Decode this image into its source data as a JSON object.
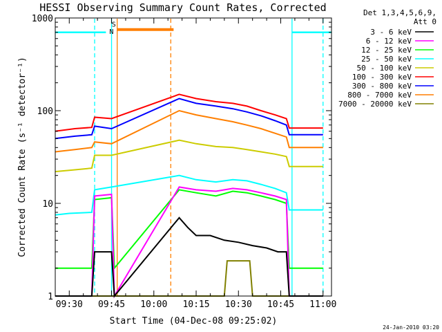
{
  "chart_data": {
    "type": "line",
    "title": "HESSI Observing Summary Count Rates, Corrected",
    "xlabel": "Start Time (04-Dec-08 09:25:02)",
    "ylabel": "Corrected Count Rate (s⁻¹ detector⁻¹)",
    "yscale": "log",
    "ylim": [
      1,
      1000
    ],
    "xlim": [
      "09:25:02",
      "11:03:00"
    ],
    "x_ticks": [
      "09:30",
      "09:45",
      "10:00",
      "10:15",
      "10:30",
      "10:45",
      "11:00"
    ],
    "y_ticks": [
      "1",
      "10",
      "100",
      "1000"
    ],
    "grid": false,
    "legend_position": "right",
    "legend_header": [
      "Det 1,3,4,5,6,9,",
      "Att 0"
    ],
    "footer_date": "24-Jan-2010 03:20",
    "flags": [
      {
        "label": "N",
        "color": "#00ffff",
        "level": 700,
        "segments": [
          [
            "09:25",
            "09:43"
          ],
          [
            "10:49",
            "11:03"
          ]
        ]
      },
      {
        "label": "S",
        "color": "#ff7f00",
        "level": 750,
        "segments": [
          [
            "09:47",
            "10:07"
          ]
        ]
      }
    ],
    "markers": [
      {
        "time": "09:39",
        "color": "#00ffff",
        "style": "dashed"
      },
      {
        "time": "09:45",
        "color": "#00ffff",
        "style": "solid"
      },
      {
        "time": "09:47",
        "color": "#ff7f00",
        "style": "solid"
      },
      {
        "time": "10:06",
        "color": "#ff7f00",
        "style": "dashed"
      },
      {
        "time": "10:49",
        "color": "#00ffff",
        "style": "solid"
      },
      {
        "time": "11:00",
        "color": "#00ffff",
        "style": "dashed"
      }
    ],
    "series": [
      {
        "name": "3 - 6 keV",
        "color": "#000000",
        "points": [
          [
            "09:25",
            1.0
          ],
          [
            "09:38",
            1.0
          ],
          [
            "09:39",
            3.0
          ],
          [
            "09:45",
            3.0
          ],
          [
            "09:46",
            1.0
          ],
          [
            "10:09",
            7.0
          ],
          [
            "10:12",
            5.5
          ],
          [
            "10:15",
            4.5
          ],
          [
            "10:20",
            4.5
          ],
          [
            "10:25",
            4.0
          ],
          [
            "10:30",
            3.8
          ],
          [
            "10:35",
            3.5
          ],
          [
            "10:40",
            3.3
          ],
          [
            "10:44",
            3.0
          ],
          [
            "10:47",
            3.0
          ],
          [
            "10:48",
            1.0
          ],
          [
            "11:00",
            1.0
          ]
        ]
      },
      {
        "name": "6 - 12 keV",
        "color": "#ff00ff",
        "points": [
          [
            "09:25",
            1.0
          ],
          [
            "09:38",
            1.0
          ],
          [
            "09:39",
            12.0
          ],
          [
            "09:45",
            12.5
          ],
          [
            "09:46",
            1.0
          ],
          [
            "10:09",
            15.0
          ],
          [
            "10:15",
            14.0
          ],
          [
            "10:22",
            13.5
          ],
          [
            "10:28",
            14.5
          ],
          [
            "10:33",
            14.0
          ],
          [
            "10:38",
            13.0
          ],
          [
            "10:43",
            12.0
          ],
          [
            "10:47",
            11.0
          ],
          [
            "10:48",
            1.0
          ],
          [
            "11:00",
            1.0
          ]
        ]
      },
      {
        "name": "12 - 25 keV",
        "color": "#00ff00",
        "points": [
          [
            "09:25",
            2.0
          ],
          [
            "09:38",
            2.0
          ],
          [
            "09:39",
            11.0
          ],
          [
            "09:45",
            11.5
          ],
          [
            "09:46",
            2.0
          ],
          [
            "10:09",
            14.0
          ],
          [
            "10:15",
            13.0
          ],
          [
            "10:22",
            12.0
          ],
          [
            "10:28",
            13.5
          ],
          [
            "10:33",
            13.0
          ],
          [
            "10:38",
            12.0
          ],
          [
            "10:43",
            11.0
          ],
          [
            "10:47",
            10.0
          ],
          [
            "10:48",
            2.0
          ],
          [
            "11:00",
            2.0
          ]
        ]
      },
      {
        "name": "25 - 50 keV",
        "color": "#00ffff",
        "points": [
          [
            "09:25",
            7.5
          ],
          [
            "09:30",
            7.8
          ],
          [
            "09:38",
            8.0
          ],
          [
            "09:39",
            14.0
          ],
          [
            "09:45",
            15.0
          ],
          [
            "10:09",
            20.0
          ],
          [
            "10:15",
            18.0
          ],
          [
            "10:22",
            17.0
          ],
          [
            "10:28",
            18.0
          ],
          [
            "10:33",
            17.5
          ],
          [
            "10:38",
            16.0
          ],
          [
            "10:43",
            14.5
          ],
          [
            "10:47",
            13.0
          ],
          [
            "10:48",
            8.5
          ],
          [
            "11:00",
            8.5
          ]
        ]
      },
      {
        "name": "50 - 100 keV",
        "color": "#cccc00",
        "points": [
          [
            "09:25",
            22.0
          ],
          [
            "09:32",
            23.0
          ],
          [
            "09:38",
            24.0
          ],
          [
            "09:39",
            33.0
          ],
          [
            "09:45",
            33.0
          ],
          [
            "10:09",
            48.0
          ],
          [
            "10:15",
            44.0
          ],
          [
            "10:22",
            41.0
          ],
          [
            "10:28",
            40.0
          ],
          [
            "10:33",
            38.0
          ],
          [
            "10:38",
            36.0
          ],
          [
            "10:43",
            34.0
          ],
          [
            "10:47",
            32.0
          ],
          [
            "10:48",
            25.0
          ],
          [
            "11:00",
            25.0
          ]
        ]
      },
      {
        "name": "100 - 300 keV",
        "color": "#ff0000",
        "points": [
          [
            "09:25",
            60.0
          ],
          [
            "09:32",
            64.0
          ],
          [
            "09:38",
            66.0
          ],
          [
            "09:39",
            85.0
          ],
          [
            "09:45",
            82.0
          ],
          [
            "10:09",
            150.0
          ],
          [
            "10:15",
            135.0
          ],
          [
            "10:22",
            125.0
          ],
          [
            "10:28",
            120.0
          ],
          [
            "10:33",
            112.0
          ],
          [
            "10:38",
            100.0
          ],
          [
            "10:43",
            90.0
          ],
          [
            "10:47",
            82.0
          ],
          [
            "10:48",
            65.0
          ],
          [
            "11:00",
            65.0
          ]
        ]
      },
      {
        "name": "300 - 800 keV",
        "color": "#0000ff",
        "points": [
          [
            "09:25",
            50.0
          ],
          [
            "09:32",
            53.0
          ],
          [
            "09:38",
            55.0
          ],
          [
            "09:39",
            68.0
          ],
          [
            "09:45",
            64.0
          ],
          [
            "10:09",
            135.0
          ],
          [
            "10:15",
            120.0
          ],
          [
            "10:22",
            112.0
          ],
          [
            "10:28",
            105.0
          ],
          [
            "10:33",
            97.0
          ],
          [
            "10:38",
            88.0
          ],
          [
            "10:43",
            78.0
          ],
          [
            "10:47",
            70.0
          ],
          [
            "10:48",
            55.0
          ],
          [
            "11:00",
            55.0
          ]
        ]
      },
      {
        "name": "800 - 7000 keV",
        "color": "#ff7f00",
        "points": [
          [
            "09:25",
            36.0
          ],
          [
            "09:32",
            38.0
          ],
          [
            "09:38",
            40.0
          ],
          [
            "09:39",
            46.0
          ],
          [
            "09:45",
            44.0
          ],
          [
            "10:09",
            100.0
          ],
          [
            "10:15",
            90.0
          ],
          [
            "10:22",
            82.0
          ],
          [
            "10:28",
            76.0
          ],
          [
            "10:33",
            70.0
          ],
          [
            "10:38",
            64.0
          ],
          [
            "10:43",
            57.0
          ],
          [
            "10:47",
            52.0
          ],
          [
            "10:48",
            40.0
          ],
          [
            "11:00",
            40.0
          ]
        ]
      },
      {
        "name": "7000 - 20000 keV",
        "color": "#808000",
        "points": [
          [
            "09:25",
            1.0
          ],
          [
            "09:45",
            1.0
          ],
          [
            "10:09",
            1.0
          ],
          [
            "10:25",
            1.0
          ],
          [
            "10:26",
            2.4
          ],
          [
            "10:34",
            2.4
          ],
          [
            "10:35",
            1.0
          ],
          [
            "11:00",
            1.0
          ]
        ]
      }
    ]
  }
}
